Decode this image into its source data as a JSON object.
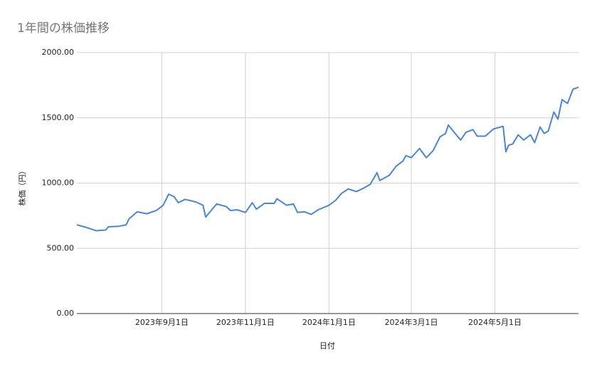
{
  "chart_data": {
    "type": "line",
    "title": "1年間の株価推移",
    "x_label": "日付",
    "y_label": "株価（円）",
    "x": [
      "2023-07-01",
      "2023-07-08",
      "2023-07-15",
      "2023-07-22",
      "2023-07-24",
      "2023-07-31",
      "2023-08-06",
      "2023-08-08",
      "2023-08-14",
      "2023-08-21",
      "2023-08-28",
      "2023-09-02",
      "2023-09-06",
      "2023-09-10",
      "2023-09-13",
      "2023-09-18",
      "2023-09-26",
      "2023-10-01",
      "2023-10-03",
      "2023-10-11",
      "2023-10-18",
      "2023-10-21",
      "2023-10-26",
      "2023-11-01",
      "2023-11-06",
      "2023-11-09",
      "2023-11-15",
      "2023-11-22",
      "2023-11-24",
      "2023-12-01",
      "2023-12-06",
      "2023-12-09",
      "2023-12-14",
      "2023-12-19",
      "2023-12-24",
      "2024-01-01",
      "2024-01-06",
      "2024-01-10",
      "2024-01-15",
      "2024-01-21",
      "2024-01-26",
      "2024-01-31",
      "2024-02-05",
      "2024-02-07",
      "2024-02-14",
      "2024-02-19",
      "2024-02-24",
      "2024-02-26",
      "2024-03-01",
      "2024-03-07",
      "2024-03-12",
      "2024-03-17",
      "2024-03-22",
      "2024-03-26",
      "2024-03-28",
      "2024-04-02",
      "2024-04-06",
      "2024-04-10",
      "2024-04-15",
      "2024-04-18",
      "2024-04-24",
      "2024-04-30",
      "2024-05-07",
      "2024-05-09",
      "2024-05-11",
      "2024-05-14",
      "2024-05-18",
      "2024-05-22",
      "2024-05-27",
      "2024-05-30",
      "2024-06-03",
      "2024-06-06",
      "2024-06-09",
      "2024-06-13",
      "2024-06-16",
      "2024-06-19",
      "2024-06-23",
      "2024-06-27",
      "2024-07-01"
    ],
    "series": [
      {
        "name": "株価",
        "color": "#4a86d4",
        "values": [
          680,
          660,
          635,
          640,
          665,
          668,
          680,
          725,
          780,
          765,
          790,
          830,
          915,
          895,
          850,
          875,
          855,
          830,
          740,
          840,
          820,
          790,
          795,
          775,
          850,
          800,
          845,
          845,
          880,
          830,
          840,
          775,
          780,
          760,
          795,
          830,
          870,
          920,
          955,
          935,
          960,
          990,
          1080,
          1020,
          1060,
          1130,
          1170,
          1210,
          1195,
          1265,
          1195,
          1250,
          1355,
          1380,
          1445,
          1380,
          1330,
          1390,
          1410,
          1360,
          1360,
          1415,
          1435,
          1240,
          1290,
          1300,
          1370,
          1330,
          1370,
          1310,
          1430,
          1380,
          1400,
          1545,
          1490,
          1640,
          1610,
          1720,
          1735
        ]
      }
    ],
    "xlim": [
      "2023-07-01",
      "2024-07-01"
    ],
    "xticks": [
      {
        "value": "2023-09-01",
        "label": "2023年9月1日"
      },
      {
        "value": "2023-11-01",
        "label": "2023年11月1日"
      },
      {
        "value": "2024-01-01",
        "label": "2024年1月1日"
      },
      {
        "value": "2024-03-01",
        "label": "2024年3月1日"
      },
      {
        "value": "2024-05-01",
        "label": "2024年5月1日"
      }
    ],
    "ylim": [
      0,
      2000
    ],
    "yticks": [
      {
        "value": 0,
        "label": "0.00"
      },
      {
        "value": 500,
        "label": "500.00"
      },
      {
        "value": 1000,
        "label": "1000.00"
      },
      {
        "value": 1500,
        "label": "1500.00"
      },
      {
        "value": 2000,
        "label": "2000.00"
      }
    ],
    "grid": true
  }
}
